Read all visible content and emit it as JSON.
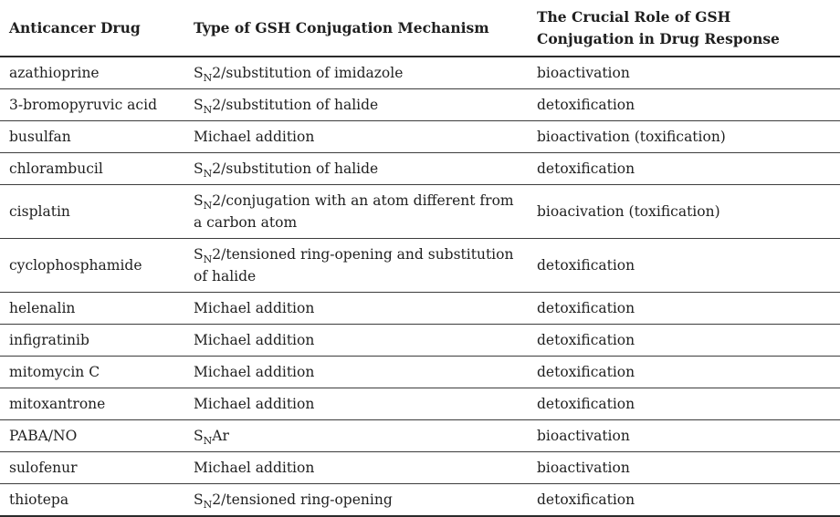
{
  "table": {
    "headers": [
      "Anticancer Drug",
      "Type of GSH Conjugation Mechanism",
      "The Crucial Role of GSH Conjugation in Drug Response"
    ],
    "rows": [
      {
        "drug": "azathioprine",
        "mechanism": "S~N~2/substitution of imidazole",
        "role": "bioactivation"
      },
      {
        "drug": "3-bromopyruvic acid",
        "mechanism": "S~N~2/substitution of halide",
        "role": "detoxification"
      },
      {
        "drug": "busulfan",
        "mechanism": "Michael addition",
        "role": "bioactivation (toxification)"
      },
      {
        "drug": "chlorambucil",
        "mechanism": "S~N~2/substitution of halide",
        "role": "detoxification"
      },
      {
        "drug": "cisplatin",
        "mechanism": "S~N~2/conjugation with an atom different from a carbon atom",
        "role": "bioacivation (toxification)"
      },
      {
        "drug": "cyclophosphamide",
        "mechanism": "S~N~2/tensioned ring-opening and substitution of halide",
        "role": "detoxification"
      },
      {
        "drug": "helenalin",
        "mechanism": "Michael addition",
        "role": "detoxification"
      },
      {
        "drug": "infigratinib",
        "mechanism": "Michael addition",
        "role": "detoxification"
      },
      {
        "drug": "mitomycin C",
        "mechanism": "Michael addition",
        "role": "detoxification"
      },
      {
        "drug": "mitoxantrone",
        "mechanism": "Michael addition",
        "role": "detoxification"
      },
      {
        "drug": "PABA/NO",
        "mechanism": "S~N~Ar",
        "role": "bioactivation"
      },
      {
        "drug": "sulofenur",
        "mechanism": "Michael addition",
        "role": "bioactivation"
      },
      {
        "drug": "thiotepa",
        "mechanism": "S~N~2/tensioned ring-opening",
        "role": "detoxification"
      }
    ]
  },
  "colors": {
    "text": "#1f1f1f",
    "row_border": "#3c3c3c",
    "heavy_border": "#2b2b2b",
    "background": "#ffffff"
  }
}
